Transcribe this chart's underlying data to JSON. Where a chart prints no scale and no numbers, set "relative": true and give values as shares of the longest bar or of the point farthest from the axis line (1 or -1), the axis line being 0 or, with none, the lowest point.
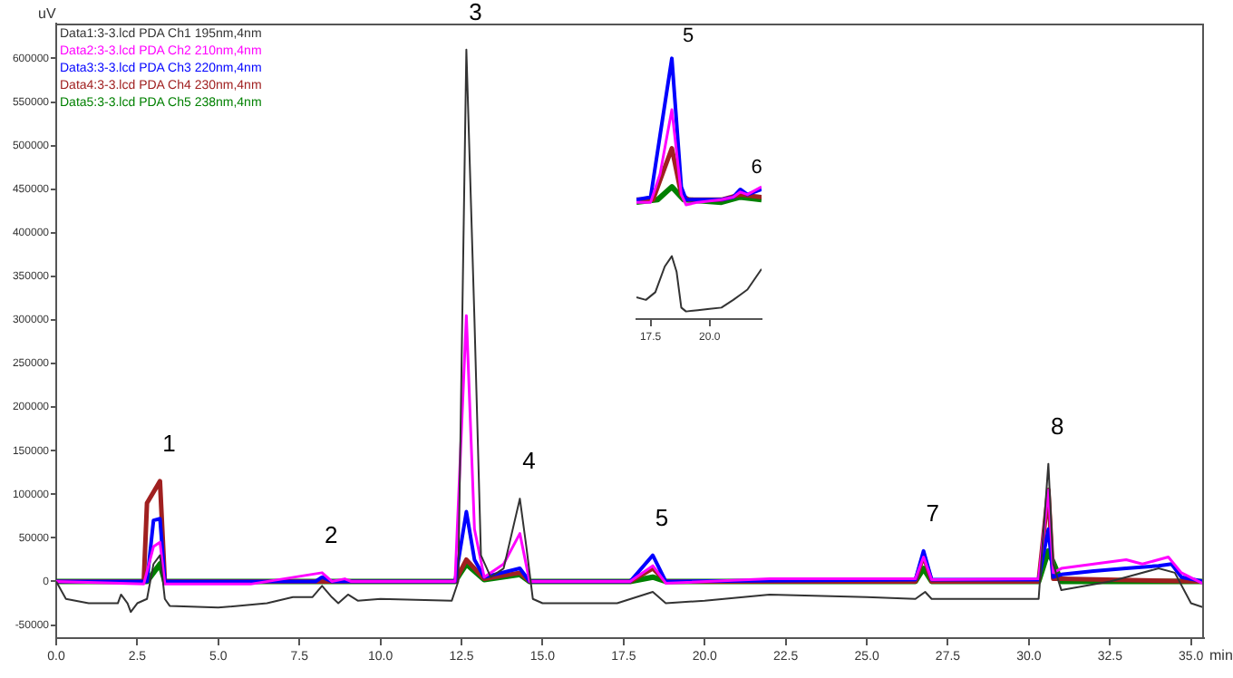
{
  "chart_data": [
    {
      "type": "line",
      "xlabel": "min",
      "ylabel": "uV",
      "legend": "top left",
      "marker": "none",
      "grid": false,
      "xlim": [
        0,
        35.4
      ],
      "ylim": [
        -65000,
        640000
      ],
      "xticks": [
        {
          "value": 0,
          "label": "0.0"
        },
        {
          "value": 2.5,
          "label": "2.5"
        },
        {
          "value": 5,
          "label": "5.0"
        },
        {
          "value": 7.5,
          "label": "7.5"
        },
        {
          "value": 10,
          "label": "10.0"
        },
        {
          "value": 12.5,
          "label": "12.5"
        },
        {
          "value": 15,
          "label": "15.0"
        },
        {
          "value": 17.5,
          "label": "17.5"
        },
        {
          "value": 20,
          "label": "20.0"
        },
        {
          "value": 22.5,
          "label": "22.5"
        },
        {
          "value": 25,
          "label": "25.0"
        },
        {
          "value": 27.5,
          "label": "27.5"
        },
        {
          "value": 30,
          "label": "30.0"
        },
        {
          "value": 32.5,
          "label": "32.5"
        },
        {
          "value": 35,
          "label": "35.0"
        }
      ],
      "yticks": [
        -50000,
        0,
        50000,
        100000,
        150000,
        200000,
        250000,
        300000,
        350000,
        400000,
        450000,
        500000,
        550000,
        600000
      ],
      "annotations": [
        {
          "text": "1",
          "x": 3.2,
          "y": 115000
        },
        {
          "text": "2",
          "x": 8.2,
          "y": 10000
        },
        {
          "text": "3",
          "x": 12.65,
          "y": 610000
        },
        {
          "text": "4",
          "x": 14.3,
          "y": 95000
        },
        {
          "text": "5",
          "x": 18.4,
          "y": 30000
        },
        {
          "text": "7",
          "x": 26.75,
          "y": 35000
        },
        {
          "text": "8",
          "x": 30.6,
          "y": 135000
        }
      ],
      "series": [
        {
          "name": "Data1:3-3.lcd PDA Ch1 195nm,4nm",
          "color": "#333333",
          "x": [
            0,
            0.3,
            1,
            1.9,
            2,
            2.2,
            2.3,
            2.5,
            2.8,
            3,
            3.2,
            3.35,
            3.5,
            5,
            6.5,
            7.3,
            7.9,
            8.2,
            8.5,
            8.7,
            9,
            9.3,
            10,
            12.2,
            12.4,
            12.65,
            12.9,
            13.1,
            13.4,
            13.8,
            14.3,
            14.5,
            14.7,
            15,
            17.3,
            18.4,
            18.8,
            20,
            22,
            25,
            26.5,
            26.8,
            27,
            30.3,
            30.6,
            30.75,
            31,
            32.5,
            33,
            34,
            34.5,
            35,
            35.4
          ],
          "values": [
            0,
            -20000,
            -25000,
            -25000,
            -15000,
            -25000,
            -35000,
            -25000,
            -20000,
            20000,
            30000,
            -20000,
            -28000,
            -30000,
            -25000,
            -18000,
            -18000,
            -5000,
            -18000,
            -25000,
            -15000,
            -22000,
            -20000,
            -22000,
            0,
            610000,
            300000,
            30000,
            5000,
            15000,
            95000,
            40000,
            -20000,
            -25000,
            -25000,
            -12000,
            -25000,
            -22000,
            -15000,
            -18000,
            -20000,
            -12000,
            -20000,
            -20000,
            135000,
            20000,
            -10000,
            0,
            5000,
            15000,
            10000,
            -25000,
            -30000
          ]
        },
        {
          "name": "Data2:3-3.lcd PDA Ch2 210nm,4nm",
          "color": "#ff00ff",
          "x": [
            0,
            2.7,
            3,
            3.2,
            3.35,
            6,
            8.2,
            8.5,
            8.9,
            9.1,
            12.3,
            12.65,
            12.9,
            13.2,
            13.8,
            14.3,
            14.6,
            17.7,
            18.4,
            18.8,
            22,
            26.5,
            26.75,
            27,
            30.3,
            30.6,
            30.75,
            31,
            32,
            33,
            33.5,
            34.3,
            34.7,
            35.4
          ],
          "values": [
            0,
            -3000,
            40000,
            45000,
            -3000,
            -3000,
            10000,
            0,
            3000,
            0,
            0,
            305000,
            60000,
            5000,
            20000,
            55000,
            0,
            0,
            18000,
            -2000,
            3000,
            3000,
            28000,
            2000,
            3000,
            105000,
            10000,
            15000,
            20000,
            25000,
            20000,
            28000,
            10000,
            -3000
          ]
        },
        {
          "name": "Data3:3-3.lcd PDA Ch3 220nm,4nm",
          "color": "#0000ff",
          "x": [
            0,
            2.8,
            3,
            3.2,
            3.35,
            8,
            8.2,
            8.5,
            12.3,
            12.65,
            12.9,
            13.2,
            14.3,
            14.6,
            17.7,
            18.4,
            18.8,
            26.5,
            26.75,
            27,
            30.3,
            30.6,
            30.75,
            31,
            32,
            33,
            34,
            34.4,
            34.7,
            35.4
          ],
          "values": [
            0,
            0,
            70000,
            72000,
            0,
            0,
            5000,
            0,
            0,
            80000,
            25000,
            5000,
            15000,
            0,
            0,
            30000,
            0,
            2000,
            35000,
            2000,
            2000,
            60000,
            5000,
            8000,
            12000,
            15000,
            18000,
            20000,
            5000,
            0
          ]
        },
        {
          "name": "Data4:3-3.lcd PDA Ch4 230nm,4nm",
          "color": "#a02020",
          "x": [
            0,
            2.7,
            2.8,
            3.2,
            3.35,
            12.3,
            12.65,
            13.2,
            14.3,
            14.6,
            17.7,
            18.4,
            18.8,
            26.5,
            26.75,
            27,
            30.3,
            30.6,
            30.75,
            31,
            35.4
          ],
          "values": [
            0,
            0,
            90000,
            115000,
            0,
            0,
            25000,
            3000,
            10000,
            0,
            0,
            15000,
            0,
            0,
            30000,
            0,
            0,
            105000,
            3000,
            3000,
            0
          ]
        },
        {
          "name": "Data5:3-3.lcd PDA Ch5 238nm,4nm",
          "color": "#008000",
          "x": [
            0,
            2.8,
            3.2,
            3.35,
            12.3,
            12.65,
            13.2,
            14.3,
            14.6,
            17.7,
            18.4,
            18.8,
            26.5,
            26.75,
            27,
            30.3,
            30.6,
            31,
            35.4
          ],
          "values": [
            0,
            0,
            20000,
            0,
            0,
            20000,
            2000,
            8000,
            0,
            0,
            5000,
            0,
            0,
            15000,
            0,
            0,
            35000,
            0,
            0
          ]
        }
      ]
    },
    {
      "type": "line",
      "relative": true,
      "marker": "none",
      "grid": false,
      "tick_labels": "x",
      "xlim": [
        16.9,
        22.2
      ],
      "xticks": [
        17.5,
        {
          "value": 20,
          "label": "20.0"
        }
      ],
      "annotations": [
        {
          "text": "5",
          "x": 18.4,
          "y": 1
        },
        {
          "text": "6",
          "x": 21.3,
          "y": 0.49
        }
      ],
      "series": [
        {
          "color": "#333333",
          "x": [
            16.9,
            17.3,
            17.7,
            18.1,
            18.4,
            18.6,
            18.8,
            19,
            19.5,
            20,
            20.5,
            21,
            21.3,
            21.6,
            22.2
          ],
          "values": [
            0.07,
            0.06,
            0.09,
            0.19,
            0.23,
            0.17,
            0.03,
            0.015,
            0.02,
            0.025,
            0.03,
            0.06,
            0.08,
            0.1,
            0.18
          ]
        },
        {
          "color": "#ff00ff",
          "x": [
            16.9,
            17.5,
            17.9,
            18.4,
            18.8,
            19,
            19.5,
            20.5,
            21,
            21.3,
            21.6,
            22.2
          ],
          "values": [
            0.44,
            0.44,
            0.55,
            0.8,
            0.47,
            0.43,
            0.44,
            0.45,
            0.46,
            0.48,
            0.47,
            0.5
          ]
        },
        {
          "color": "#0000ff",
          "x": [
            16.9,
            17.5,
            17.9,
            18.4,
            18.8,
            19,
            19.5,
            20.5,
            21,
            21.3,
            21.6,
            22.2
          ],
          "values": [
            0.45,
            0.46,
            0.7,
            1,
            0.5,
            0.45,
            0.45,
            0.45,
            0.46,
            0.49,
            0.47,
            0.49
          ]
        },
        {
          "color": "#a02020",
          "x": [
            16.9,
            17.6,
            18,
            18.4,
            18.8,
            19.1,
            20.5,
            21.3,
            22.2
          ],
          "values": [
            0.45,
            0.45,
            0.55,
            0.65,
            0.47,
            0.45,
            0.45,
            0.47,
            0.46
          ]
        },
        {
          "color": "#008000",
          "x": [
            16.9,
            17.8,
            18.4,
            18.9,
            20.5,
            21.3,
            22.2
          ],
          "values": [
            0.44,
            0.45,
            0.5,
            0.45,
            0.44,
            0.46,
            0.45
          ]
        }
      ]
    }
  ]
}
